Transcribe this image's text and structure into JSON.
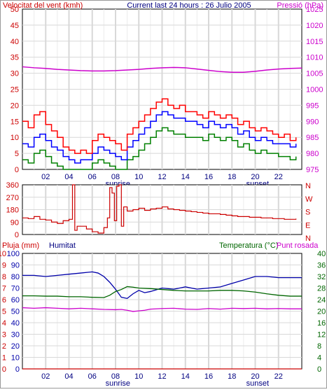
{
  "chart_data": [
    {
      "type": "line",
      "title": "Current last 24 hours : 26 Julio 2005",
      "y_left_label": "Velocitat del vent (kmh)",
      "y_right_label": "Pressió (hPa)",
      "y_left_ticks": [
        "0",
        "5",
        "10",
        "15",
        "20",
        "25",
        "30",
        "35",
        "40",
        "45",
        "50"
      ],
      "y_right_ticks": [
        "975",
        "980",
        "985",
        "990",
        "995",
        "1000",
        "1005",
        "1010",
        "1015",
        "1020",
        "1025"
      ],
      "ylim_left": [
        0,
        50
      ],
      "ylim_right": [
        975,
        1025
      ],
      "x_ticks": [
        "02",
        "04",
        "06",
        "08",
        "10",
        "12",
        "14",
        "16",
        "18",
        "20",
        "22"
      ],
      "x_annotations": {
        "sunrise": "sunrise",
        "sunset": "sunset"
      },
      "xlim": [
        0,
        24
      ],
      "grid": true,
      "colors": {
        "gust": "#ff0000",
        "mean": "#0000ff",
        "min": "#008000",
        "pressure": "#cc00cc",
        "left_axis": "#cc0000",
        "right_axis": "#cc00cc"
      },
      "series": [
        {
          "key": "gust",
          "x": [
            0,
            0.5,
            1,
            1.5,
            2,
            2.5,
            3,
            3.5,
            4,
            4.5,
            5,
            5.5,
            6,
            6.5,
            7,
            7.5,
            8,
            8.5,
            9,
            9.5,
            10,
            10.5,
            11,
            11.5,
            12,
            12.5,
            13,
            13.5,
            14,
            14.5,
            15,
            15.5,
            16,
            16.5,
            17,
            17.5,
            18,
            18.5,
            19,
            19.5,
            20,
            20.5,
            21,
            21.5,
            22,
            22.5,
            23,
            23.5
          ],
          "values": [
            15,
            13,
            17,
            18,
            14,
            12,
            10,
            7,
            6,
            5,
            6,
            5,
            9,
            11,
            10,
            9,
            8,
            6,
            11,
            13,
            15,
            17,
            19,
            21,
            22,
            20,
            19,
            20,
            18,
            18,
            17,
            16,
            18,
            17,
            16,
            17,
            16,
            14,
            15,
            13,
            12,
            13,
            12,
            11,
            10,
            11,
            9,
            10
          ]
        },
        {
          "key": "mean",
          "x": [
            0,
            0.5,
            1,
            1.5,
            2,
            2.5,
            3,
            3.5,
            4,
            4.5,
            5,
            5.5,
            6,
            6.5,
            7,
            7.5,
            8,
            8.5,
            9,
            9.5,
            10,
            10.5,
            11,
            11.5,
            12,
            12.5,
            13,
            13.5,
            14,
            14.5,
            15,
            15.5,
            16,
            16.5,
            17,
            17.5,
            18,
            18.5,
            19,
            19.5,
            20,
            20.5,
            21,
            21.5,
            22,
            22.5,
            23,
            23.5
          ],
          "values": [
            8,
            7,
            10,
            11,
            9,
            7,
            6,
            4,
            3,
            2,
            3,
            3,
            5,
            7,
            6,
            5,
            4,
            3,
            7,
            9,
            11,
            13,
            15,
            17,
            18,
            17,
            16,
            16,
            15,
            15,
            14,
            13,
            15,
            14,
            13,
            14,
            13,
            11,
            12,
            10,
            9,
            10,
            9,
            8,
            8,
            8,
            7,
            8
          ]
        },
        {
          "key": "min",
          "x": [
            0,
            0.5,
            1,
            1.5,
            2,
            2.5,
            3,
            3.5,
            4,
            4.5,
            5,
            5.5,
            6,
            6.5,
            7,
            7.5,
            8,
            8.5,
            9,
            9.5,
            10,
            10.5,
            11,
            11.5,
            12,
            12.5,
            13,
            13.5,
            14,
            14.5,
            15,
            15.5,
            16,
            16.5,
            17,
            17.5,
            18,
            18.5,
            19,
            19.5,
            20,
            20.5,
            21,
            21.5,
            22,
            22.5,
            23,
            23.5
          ],
          "values": [
            3,
            2,
            5,
            6,
            4,
            2,
            1,
            0,
            0,
            0,
            0,
            0,
            2,
            3,
            2,
            1,
            0,
            0,
            3,
            4,
            6,
            8,
            10,
            12,
            13,
            12,
            11,
            11,
            10,
            10,
            10,
            9,
            11,
            10,
            9,
            10,
            9,
            7,
            8,
            6,
            5,
            6,
            5,
            5,
            4,
            4,
            3,
            4
          ]
        },
        {
          "key": "pressure",
          "axis": "right",
          "x": [
            0,
            1,
            2,
            3,
            4,
            5,
            6,
            7,
            8,
            9,
            10,
            11,
            12,
            13,
            14,
            15,
            16,
            17,
            18,
            19,
            20,
            21,
            22,
            23,
            24
          ],
          "values": [
            1007,
            1006.7,
            1006.5,
            1006.2,
            1006,
            1005.8,
            1005.7,
            1005.7,
            1005.8,
            1006,
            1006.2,
            1006.5,
            1006.7,
            1006.8,
            1006.7,
            1006.3,
            1005.9,
            1005.5,
            1005.3,
            1005.3,
            1005.6,
            1006,
            1006.3,
            1006.5,
            1006.6
          ]
        }
      ]
    },
    {
      "type": "line",
      "y_ticks": [
        "0",
        "90",
        "180",
        "270",
        "360"
      ],
      "ylim": [
        0,
        360
      ],
      "y_right_labels": [
        "N",
        "W",
        "S",
        "E",
        "N"
      ],
      "xlim": [
        0,
        24
      ],
      "grid": true,
      "colors": {
        "direction": "#cc0000"
      },
      "series": [
        {
          "key": "direction",
          "x": [
            0,
            0.5,
            1,
            1.5,
            2,
            2.5,
            3,
            3.5,
            4,
            4.3,
            4.5,
            4.7,
            5,
            5.5,
            6,
            6.5,
            7,
            7.3,
            7.5,
            7.7,
            7.9,
            8.1,
            8.3,
            8.5,
            8.7,
            9,
            9.5,
            10,
            10.5,
            11,
            11.5,
            12,
            12.5,
            13,
            13.5,
            14,
            14.5,
            15,
            15.5,
            16,
            16.5,
            17,
            17.5,
            18,
            18.5,
            19,
            19.5,
            20,
            20.5,
            21,
            21.5,
            22,
            22.5,
            23,
            23.5
          ],
          "values": [
            120,
            115,
            130,
            110,
            105,
            90,
            80,
            100,
            110,
            360,
            30,
            60,
            60,
            40,
            20,
            10,
            50,
            120,
            340,
            300,
            100,
            350,
            360,
            60,
            200,
            170,
            180,
            190,
            175,
            185,
            190,
            200,
            185,
            180,
            175,
            170,
            165,
            160,
            155,
            150,
            150,
            145,
            140,
            135,
            130,
            130,
            125,
            125,
            120,
            120,
            115,
            115,
            110,
            110,
            115
          ]
        }
      ]
    },
    {
      "type": "line",
      "y_left_label": "Pluja (mm)",
      "y_left2_label": "Humitat",
      "y_right_label": "Temperatura (°C)",
      "y_right2_label": "Punt rosada",
      "y_left_ticks": [
        "0",
        "1",
        "2",
        "3",
        "4",
        "5",
        "6",
        "7",
        "8",
        "9",
        "10"
      ],
      "y_left2_ticks": [
        "0",
        "10",
        "20",
        "30",
        "40",
        "50",
        "60",
        "70",
        "80",
        "90",
        "100"
      ],
      "y_right_ticks": [
        "0",
        "4",
        "8",
        "12",
        "16",
        "20",
        "24",
        "28",
        "32",
        "36",
        "40"
      ],
      "ylim_humidity": [
        0,
        100
      ],
      "ylim_temperature": [
        0,
        40
      ],
      "xlim": [
        0,
        24
      ],
      "x_ticks": [
        "02",
        "04",
        "06",
        "08",
        "10",
        "12",
        "14",
        "16",
        "18",
        "20",
        "22"
      ],
      "x_annotations": {
        "sunrise": "sunrise",
        "sunset": "sunset"
      },
      "grid": true,
      "colors": {
        "rain": "#cc0000",
        "humidity": "#0000aa",
        "temperature": "#006600",
        "dewpoint": "#cc00cc"
      },
      "series": [
        {
          "key": "rain",
          "axis": "rain",
          "x": [
            0,
            24
          ],
          "values": [
            0,
            0
          ]
        },
        {
          "key": "humidity",
          "axis": "humidity",
          "x": [
            0,
            1,
            2,
            3,
            4,
            5,
            6,
            6.5,
            7,
            7.5,
            8,
            8.5,
            9,
            9.5,
            10,
            10.5,
            11,
            12,
            13,
            14,
            15,
            16,
            17,
            18,
            19,
            20,
            21,
            22,
            23,
            24
          ],
          "values": [
            81,
            81,
            80,
            81,
            82,
            83,
            84,
            83,
            80,
            75,
            69,
            62,
            61,
            65,
            68,
            66,
            67,
            70,
            69,
            71,
            69,
            70,
            71,
            74,
            77,
            80,
            80,
            79,
            79,
            79
          ]
        },
        {
          "key": "temperature",
          "axis": "temperature",
          "x": [
            0,
            1,
            2,
            3,
            4,
            5,
            6,
            7,
            7.5,
            8,
            8.5,
            9,
            9.5,
            10,
            11,
            12,
            13,
            14,
            15,
            16,
            17,
            18,
            19,
            20,
            21,
            22,
            23,
            24
          ],
          "values": [
            25.3,
            25.3,
            25.2,
            25.2,
            25,
            25,
            24.8,
            24.7,
            25.5,
            26.8,
            27.5,
            28.5,
            28.3,
            28,
            27.8,
            27.5,
            27.2,
            27,
            27,
            27,
            27.2,
            27.2,
            27,
            26.6,
            26,
            25.5,
            25.2,
            25.2
          ]
        },
        {
          "key": "dewpoint",
          "axis": "temperature",
          "x": [
            0,
            1,
            2,
            3,
            4,
            5,
            6,
            7,
            8,
            8.5,
            9,
            9.5,
            10,
            10.5,
            11,
            12,
            13,
            14,
            15,
            16,
            17,
            18,
            19,
            20,
            21,
            22,
            23,
            24
          ],
          "values": [
            21.2,
            21,
            21.2,
            21,
            20.8,
            21,
            20.8,
            20.6,
            20.5,
            20.6,
            20.3,
            19.9,
            20.1,
            20.3,
            20.7,
            20.9,
            21,
            20.7,
            20.6,
            20.9,
            20.7,
            21,
            20.9,
            21,
            20.8,
            20.9,
            20.8,
            20.8
          ]
        }
      ]
    }
  ]
}
